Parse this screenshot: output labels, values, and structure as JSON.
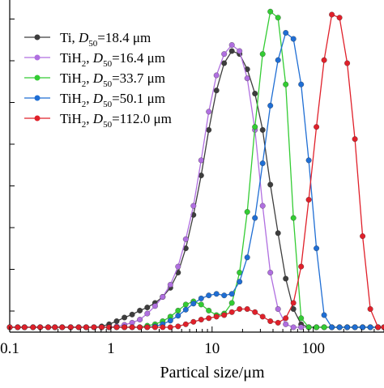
{
  "chart_data": {
    "type": "line",
    "x_scale": "log",
    "xlabel": "Partical size/μm",
    "ylabel": "",
    "xlim": [
      0.1,
      500
    ],
    "ylim": [
      0,
      9.5
    ],
    "x_ticks": [
      0.1,
      1,
      10,
      100
    ],
    "x_tick_labels": [
      "0.1",
      "1",
      "10",
      "100"
    ],
    "grid": false,
    "legend_position": "top-left",
    "x_grid_points": [
      0.1,
      0.12,
      0.14,
      0.17,
      0.2,
      0.24,
      0.28,
      0.33,
      0.4,
      0.48,
      0.57,
      0.68,
      0.81,
      0.96,
      1.14,
      1.36,
      1.62,
      1.93,
      2.29,
      2.73,
      3.25,
      3.87,
      4.61,
      5.49,
      6.54,
      7.79,
      9.28,
      11.05,
      13.17,
      15.69,
      18.69,
      22.26,
      26.52,
      31.59,
      37.63,
      44.83,
      53.4,
      63.61,
      75.78,
      90.27,
      107.5,
      128.1,
      152.6,
      181.8,
      216.5,
      257.9,
      307.2,
      366,
      436,
      500
    ],
    "series": [
      {
        "name": "Ti",
        "d50_label": "D",
        "d50_sub": "50",
        "d50_value": "=18.4 μm",
        "color": "#3d3d3d",
        "values": [
          0,
          0,
          0,
          0,
          0,
          0,
          0,
          0,
          0,
          0,
          0,
          0,
          0.03,
          0.1,
          0.2,
          0.32,
          0.42,
          0.55,
          0.65,
          0.8,
          1.0,
          1.3,
          1.8,
          2.6,
          3.7,
          5.0,
          6.5,
          7.8,
          8.7,
          9.1,
          9.0,
          8.5,
          7.7,
          6.5,
          4.7,
          3.1,
          1.6,
          0.6,
          0.1,
          0,
          0,
          0,
          0,
          0,
          0,
          0,
          0,
          0,
          0,
          0
        ]
      },
      {
        "name": "TiH",
        "name_sub": "2",
        "d50_label": "D",
        "d50_sub": "50",
        "d50_value": "=16.4 μm",
        "color": "#b06fe0",
        "values": [
          0,
          0,
          0,
          0,
          0,
          0,
          0,
          0,
          0,
          0,
          0,
          0,
          0,
          0,
          0.03,
          0.08,
          0.15,
          0.25,
          0.45,
          0.7,
          1.0,
          1.4,
          2.0,
          2.9,
          4.0,
          5.5,
          7.1,
          8.3,
          9.0,
          9.3,
          9.1,
          8.2,
          6.5,
          4.0,
          1.8,
          0.6,
          0.1,
          0,
          0,
          0,
          0,
          0,
          0,
          0,
          0,
          0,
          0,
          0,
          0,
          0
        ]
      },
      {
        "name": "TiH",
        "name_sub": "2",
        "d50_label": "D",
        "d50_sub": "50",
        "d50_value": "=33.7 μm",
        "color": "#33cc33",
        "values": [
          0,
          0,
          0,
          0,
          0,
          0,
          0,
          0,
          0,
          0,
          0,
          0,
          0,
          0,
          0,
          0,
          0,
          0,
          0.05,
          0.1,
          0.2,
          0.35,
          0.55,
          0.75,
          0.85,
          0.75,
          0.55,
          0.4,
          0.45,
          0.8,
          1.8,
          3.8,
          6.6,
          9.0,
          10.4,
          10.2,
          8.0,
          3.6,
          0.3,
          0,
          0,
          0,
          0,
          0,
          0,
          0,
          0,
          0,
          0,
          0
        ]
      },
      {
        "name": "TiH",
        "name_sub": "2",
        "d50_label": "D",
        "d50_sub": "50",
        "d50_value": "=50.1 μm",
        "color": "#1f6ed4",
        "values": [
          0,
          0,
          0,
          0,
          0,
          0,
          0,
          0,
          0,
          0,
          0,
          0,
          0,
          0,
          0,
          0,
          0,
          0,
          0,
          0.03,
          0.1,
          0.22,
          0.38,
          0.58,
          0.78,
          0.95,
          1.05,
          1.1,
          1.05,
          1.1,
          1.5,
          2.3,
          3.6,
          5.4,
          7.3,
          8.8,
          9.7,
          9.5,
          8.0,
          5.5,
          2.6,
          0.4,
          0,
          0,
          0,
          0,
          0,
          0,
          0,
          0
        ]
      },
      {
        "name": "TiH",
        "name_sub": "2",
        "d50_label": "D",
        "d50_sub": "50",
        "d50_value": "=112.0 μm",
        "color": "#e0202a",
        "values": [
          0,
          0,
          0,
          0,
          0,
          0,
          0,
          0,
          0,
          0,
          0,
          0,
          0,
          0,
          0,
          0,
          0,
          0,
          0,
          0,
          0,
          0,
          0.03,
          0.1,
          0.18,
          0.25,
          0.3,
          0.35,
          0.4,
          0.5,
          0.6,
          0.6,
          0.5,
          0.35,
          0.2,
          0.15,
          0.3,
          0.8,
          2.0,
          4.2,
          6.6,
          8.8,
          10.3,
          10.2,
          8.7,
          6.2,
          3.0,
          0.6,
          0,
          0
        ]
      }
    ]
  }
}
